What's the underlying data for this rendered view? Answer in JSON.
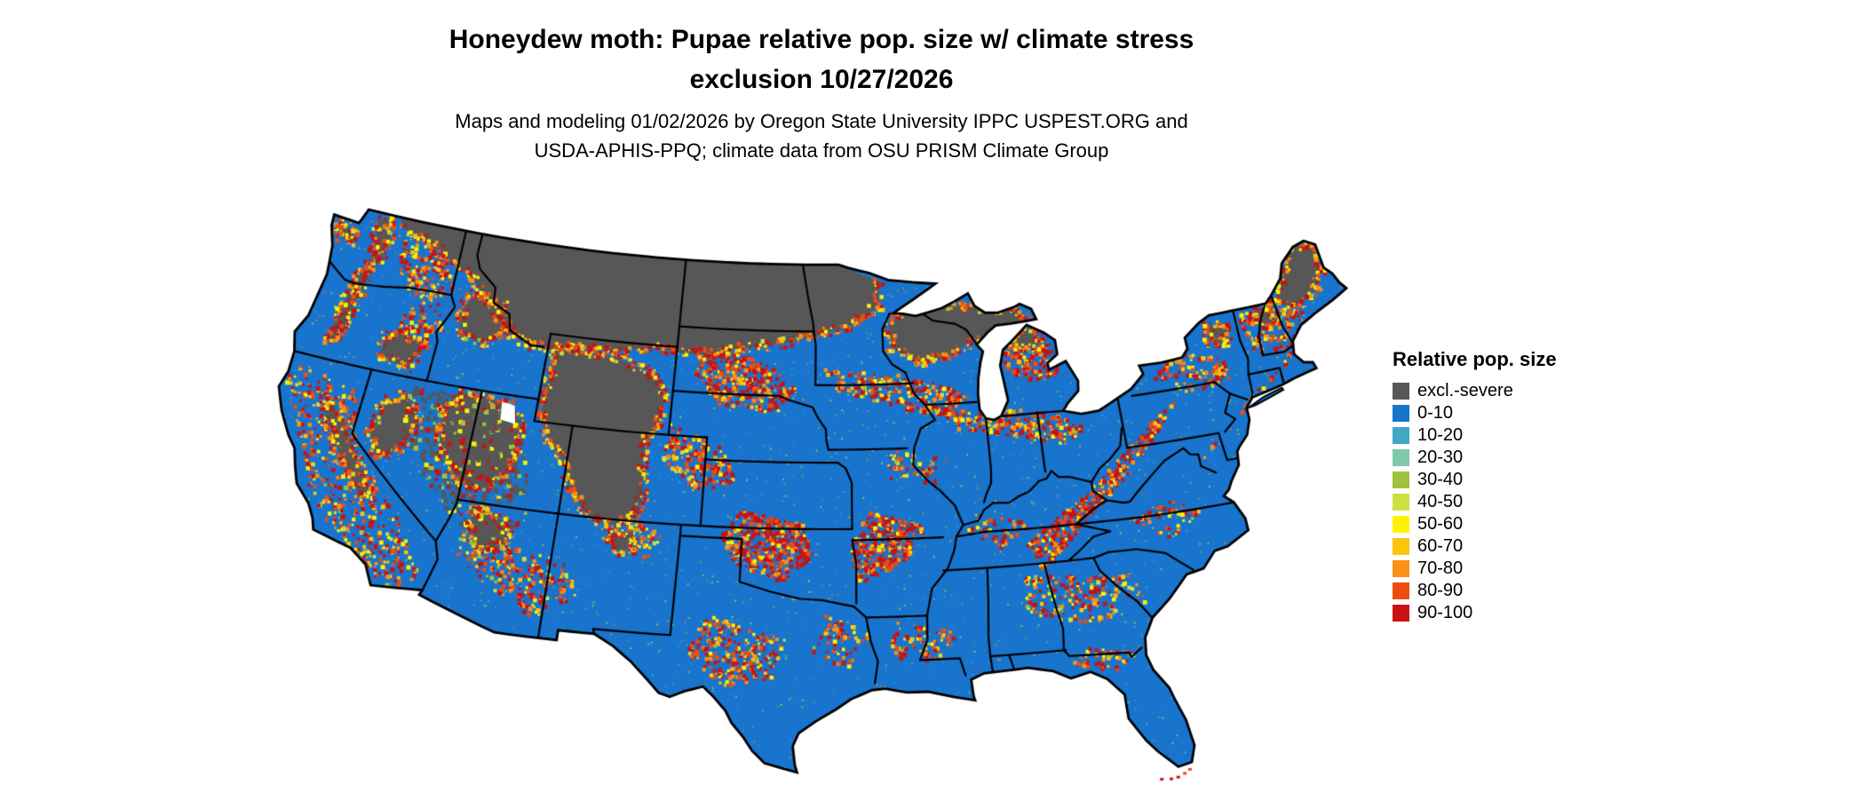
{
  "page": {
    "background": "#FFFFFF"
  },
  "title": {
    "line1": "Honeydew moth: Pupae relative pop. size w/ climate stress",
    "line2": "exclusion 10/27/2026"
  },
  "subtitle": {
    "line1": "Maps and modeling 01/02/2026 by Oregon State University IPPC USPEST.ORG and",
    "line2": "USDA-APHIS-PPQ; climate data from OSU PRISM Climate Group"
  },
  "map": {
    "region": "contiguous-united-states",
    "type": "raster-choropleth",
    "water_color": "#FFFFFF",
    "boundary_color": "#000000"
  },
  "legend": {
    "title": "Relative pop. size",
    "items": [
      {
        "label": "excl.-severe",
        "color": "#575757"
      },
      {
        "label": "0-10",
        "color": "#1874CD"
      },
      {
        "label": "10-20",
        "color": "#41A7C4"
      },
      {
        "label": "20-30",
        "color": "#7FC8A8"
      },
      {
        "label": "30-40",
        "color": "#9DC43B"
      },
      {
        "label": "40-50",
        "color": "#CEE03E"
      },
      {
        "label": "50-60",
        "color": "#FFF200"
      },
      {
        "label": "60-70",
        "color": "#FDC50C"
      },
      {
        "label": "70-80",
        "color": "#FA9016"
      },
      {
        "label": "80-90",
        "color": "#EE4D12"
      },
      {
        "label": "90-100",
        "color": "#CB1111"
      }
    ]
  }
}
